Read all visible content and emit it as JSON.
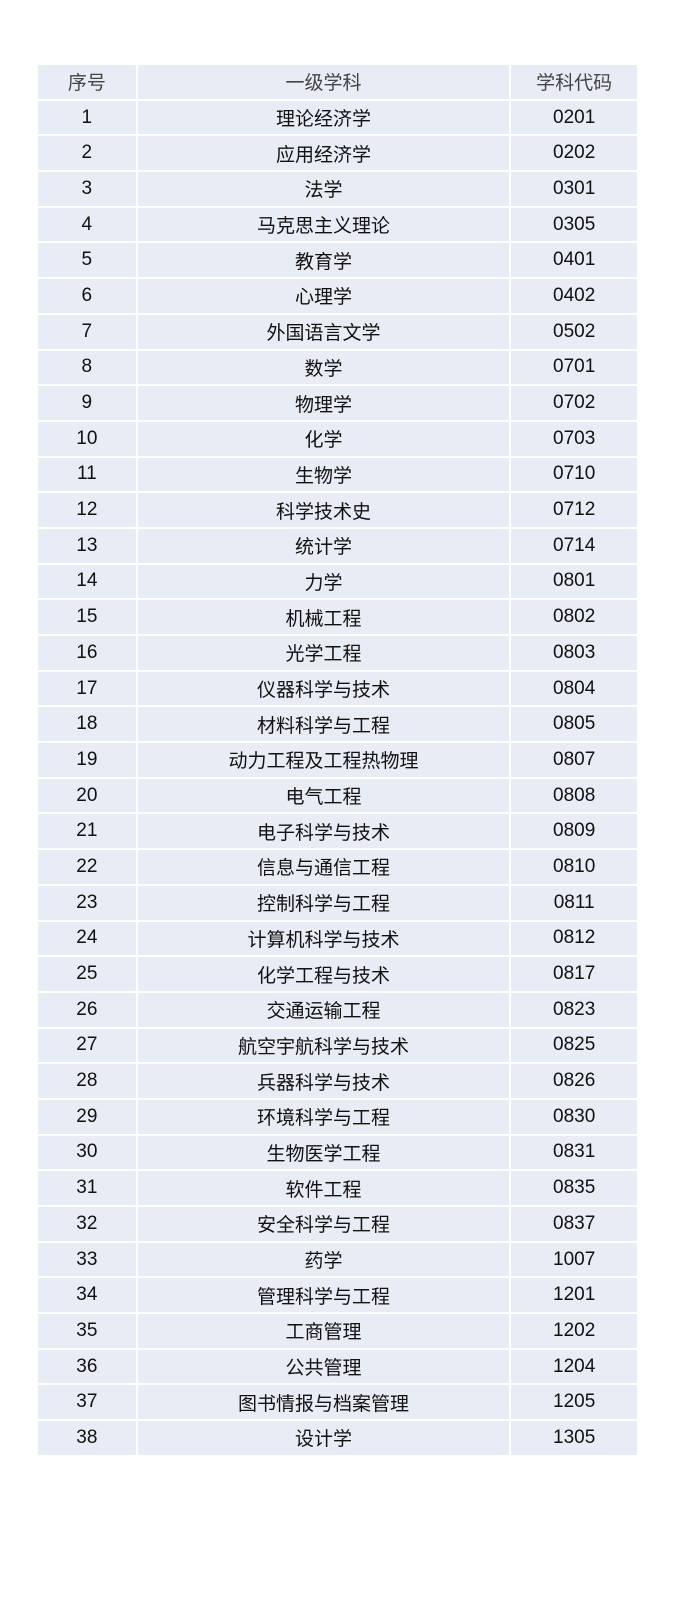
{
  "table": {
    "headers": [
      "序号",
      "一级学科",
      "学科代码"
    ],
    "rows": [
      [
        "1",
        "理论经济学",
        "0201"
      ],
      [
        "2",
        "应用经济学",
        "0202"
      ],
      [
        "3",
        "法学",
        "0301"
      ],
      [
        "4",
        "马克思主义理论",
        "0305"
      ],
      [
        "5",
        "教育学",
        "0401"
      ],
      [
        "6",
        "心理学",
        "0402"
      ],
      [
        "7",
        "外国语言文学",
        "0502"
      ],
      [
        "8",
        "数学",
        "0701"
      ],
      [
        "9",
        "物理学",
        "0702"
      ],
      [
        "10",
        "化学",
        "0703"
      ],
      [
        "11",
        "生物学",
        "0710"
      ],
      [
        "12",
        "科学技术史",
        "0712"
      ],
      [
        "13",
        "统计学",
        "0714"
      ],
      [
        "14",
        "力学",
        "0801"
      ],
      [
        "15",
        "机械工程",
        "0802"
      ],
      [
        "16",
        "光学工程",
        "0803"
      ],
      [
        "17",
        "仪器科学与技术",
        "0804"
      ],
      [
        "18",
        "材料科学与工程",
        "0805"
      ],
      [
        "19",
        "动力工程及工程热物理",
        "0807"
      ],
      [
        "20",
        "电气工程",
        "0808"
      ],
      [
        "21",
        "电子科学与技术",
        "0809"
      ],
      [
        "22",
        "信息与通信工程",
        "0810"
      ],
      [
        "23",
        "控制科学与工程",
        "0811"
      ],
      [
        "24",
        "计算机科学与技术",
        "0812"
      ],
      [
        "25",
        "化学工程与技术",
        "0817"
      ],
      [
        "26",
        "交通运输工程",
        "0823"
      ],
      [
        "27",
        "航空宇航科学与技术",
        "0825"
      ],
      [
        "28",
        "兵器科学与技术",
        "0826"
      ],
      [
        "29",
        "环境科学与工程",
        "0830"
      ],
      [
        "30",
        "生物医学工程",
        "0831"
      ],
      [
        "31",
        "软件工程",
        "0835"
      ],
      [
        "32",
        "安全科学与工程",
        "0837"
      ],
      [
        "33",
        "药学",
        "1007"
      ],
      [
        "34",
        "管理科学与工程",
        "1201"
      ],
      [
        "35",
        "工商管理",
        "1202"
      ],
      [
        "36",
        "公共管理",
        "1204"
      ],
      [
        "37",
        "图书情报与档案管理",
        "1205"
      ],
      [
        "38",
        "设计学",
        "1305"
      ]
    ]
  }
}
